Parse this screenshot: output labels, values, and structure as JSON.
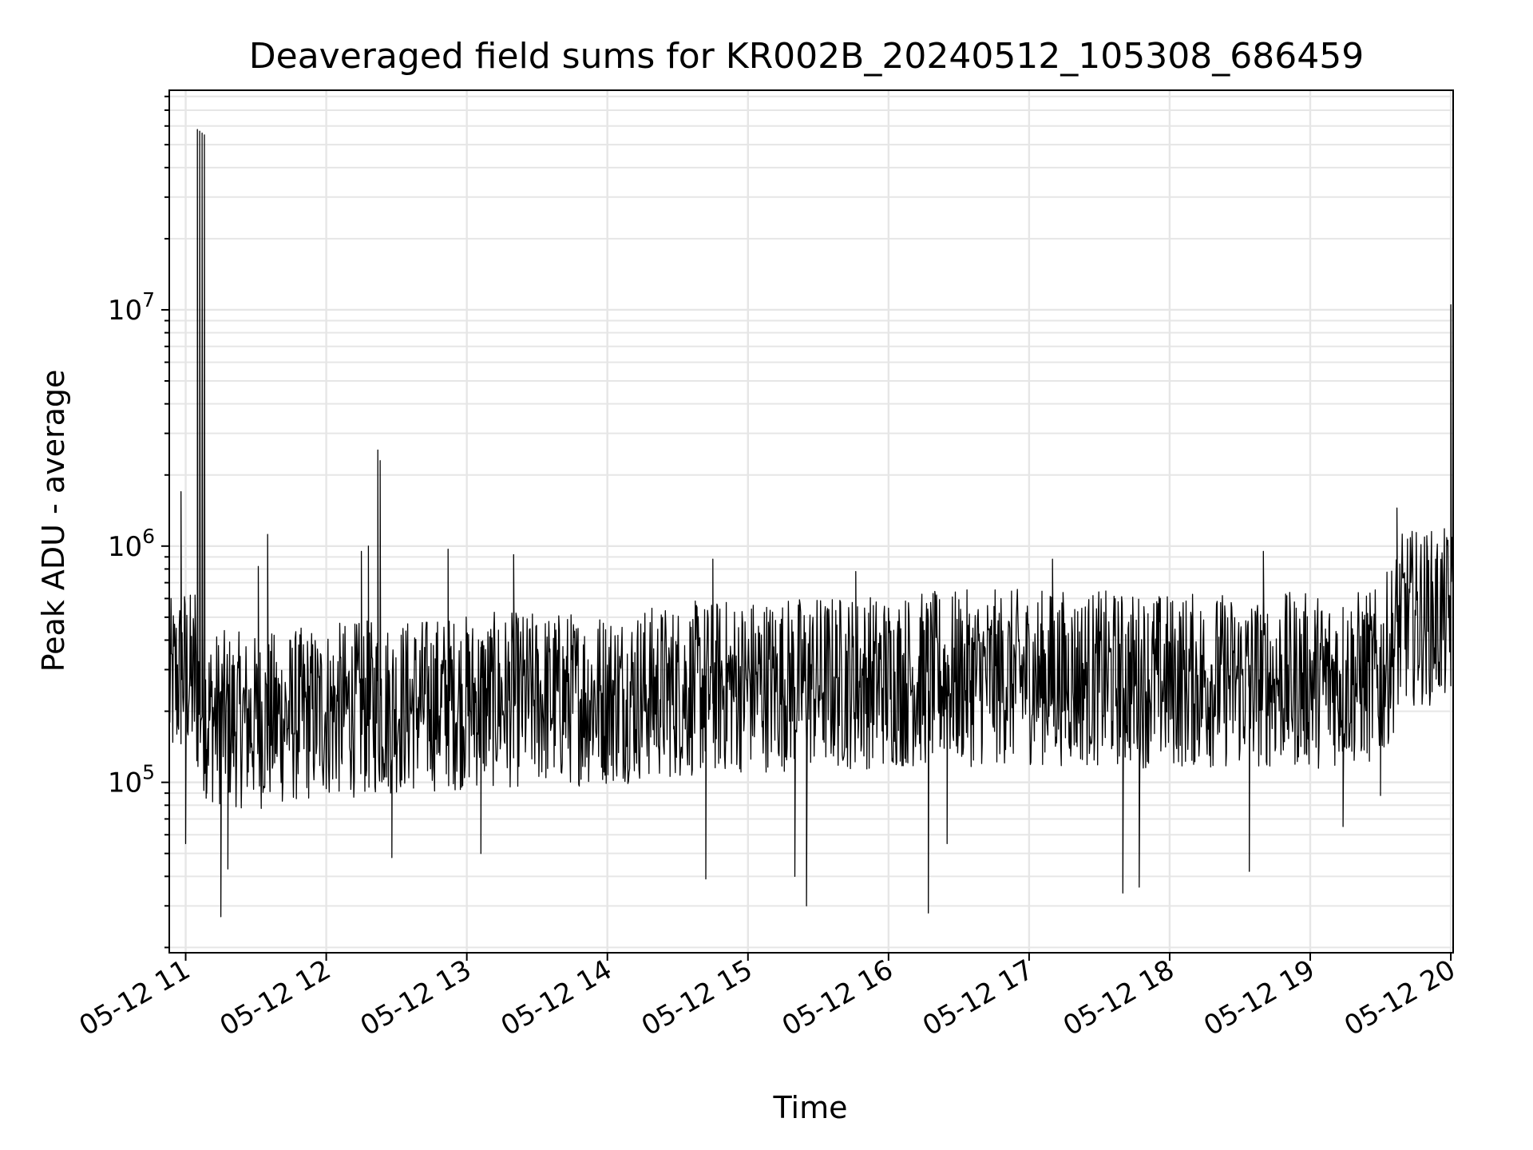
{
  "chart_data": {
    "type": "line",
    "title": "Deaveraged field sums for KR002B_20240512_105308_686459",
    "xlabel": "Time",
    "ylabel": "Peak ADU - average",
    "y_scale": "log",
    "grid": true,
    "minor_grid": true,
    "xlim": [
      "2024-05-12 10:53",
      "2024-05-12 20:01"
    ],
    "ylim": [
      19000,
      85000000
    ],
    "x_ticks": [
      "05-12 11",
      "05-12 12",
      "05-12 13",
      "05-12 14",
      "05-12 15",
      "05-12 16",
      "05-12 17",
      "05-12 18",
      "05-12 19",
      "05-12 20"
    ],
    "y_ticks": [
      {
        "base": "10",
        "exp": "5",
        "value": 100000
      },
      {
        "base": "10",
        "exp": "6",
        "value": 1000000
      },
      {
        "base": "10",
        "exp": "7",
        "value": 10000000
      }
    ],
    "series": [
      {
        "color": "#000000",
        "baseline": [
          [
            "2024-05-12 10:53",
            250000
          ],
          [
            "2024-05-12 11:00",
            300000
          ],
          [
            "2024-05-12 11:10",
            190000
          ],
          [
            "2024-05-12 11:30",
            180000
          ],
          [
            "2024-05-12 12:00",
            200000
          ],
          [
            "2024-05-12 13:00",
            220000
          ],
          [
            "2024-05-12 14:00",
            230000
          ],
          [
            "2024-05-12 15:00",
            260000
          ],
          [
            "2024-05-12 16:00",
            270000
          ],
          [
            "2024-05-12 17:00",
            280000
          ],
          [
            "2024-05-12 18:00",
            270000
          ],
          [
            "2024-05-12 19:00",
            270000
          ],
          [
            "2024-05-12 19:30",
            280000
          ],
          [
            "2024-05-12 19:40",
            500000
          ],
          [
            "2024-05-12 20:01",
            500000
          ]
        ],
        "points": [
          [
            "2024-05-12 10:58",
            1700000
          ],
          [
            "2024-05-12 11:00",
            55000
          ],
          [
            "2024-05-12 11:02",
            550000
          ],
          [
            "2024-05-12 11:04",
            620000
          ],
          [
            "2024-05-12 11:05",
            58000000
          ],
          [
            "2024-05-12 11:06",
            57000000
          ],
          [
            "2024-05-12 11:07",
            56000000
          ],
          [
            "2024-05-12 11:08",
            55000000
          ],
          [
            "2024-05-12 11:09",
            90000
          ],
          [
            "2024-05-12 11:15",
            27000
          ],
          [
            "2024-05-12 11:18",
            43000
          ],
          [
            "2024-05-12 11:31",
            820000
          ],
          [
            "2024-05-12 11:35",
            1120000
          ],
          [
            "2024-05-12 12:15",
            950000
          ],
          [
            "2024-05-12 12:18",
            1000000
          ],
          [
            "2024-05-12 12:22",
            2550000
          ],
          [
            "2024-05-12 12:23",
            2300000
          ],
          [
            "2024-05-12 12:28",
            48000
          ],
          [
            "2024-05-12 12:52",
            970000
          ],
          [
            "2024-05-12 13:06",
            50000
          ],
          [
            "2024-05-12 13:20",
            920000
          ],
          [
            "2024-05-12 14:42",
            39000
          ],
          [
            "2024-05-12 14:45",
            880000
          ],
          [
            "2024-05-12 15:20",
            40000
          ],
          [
            "2024-05-12 15:25",
            30000
          ],
          [
            "2024-05-12 15:46",
            780000
          ],
          [
            "2024-05-12 16:17",
            28000
          ],
          [
            "2024-05-12 16:25",
            55000
          ],
          [
            "2024-05-12 17:10",
            880000
          ],
          [
            "2024-05-12 17:40",
            34000
          ],
          [
            "2024-05-12 17:47",
            36000
          ],
          [
            "2024-05-12 18:34",
            42000
          ],
          [
            "2024-05-12 18:40",
            950000
          ],
          [
            "2024-05-12 19:14",
            65000
          ],
          [
            "2024-05-12 19:30",
            88000
          ],
          [
            "2024-05-12 19:37",
            1450000
          ],
          [
            "2024-05-12 19:50",
            1000000
          ],
          [
            "2024-05-12 19:56",
            310000
          ],
          [
            "2024-05-12 20:00",
            10500000
          ]
        ]
      }
    ]
  }
}
